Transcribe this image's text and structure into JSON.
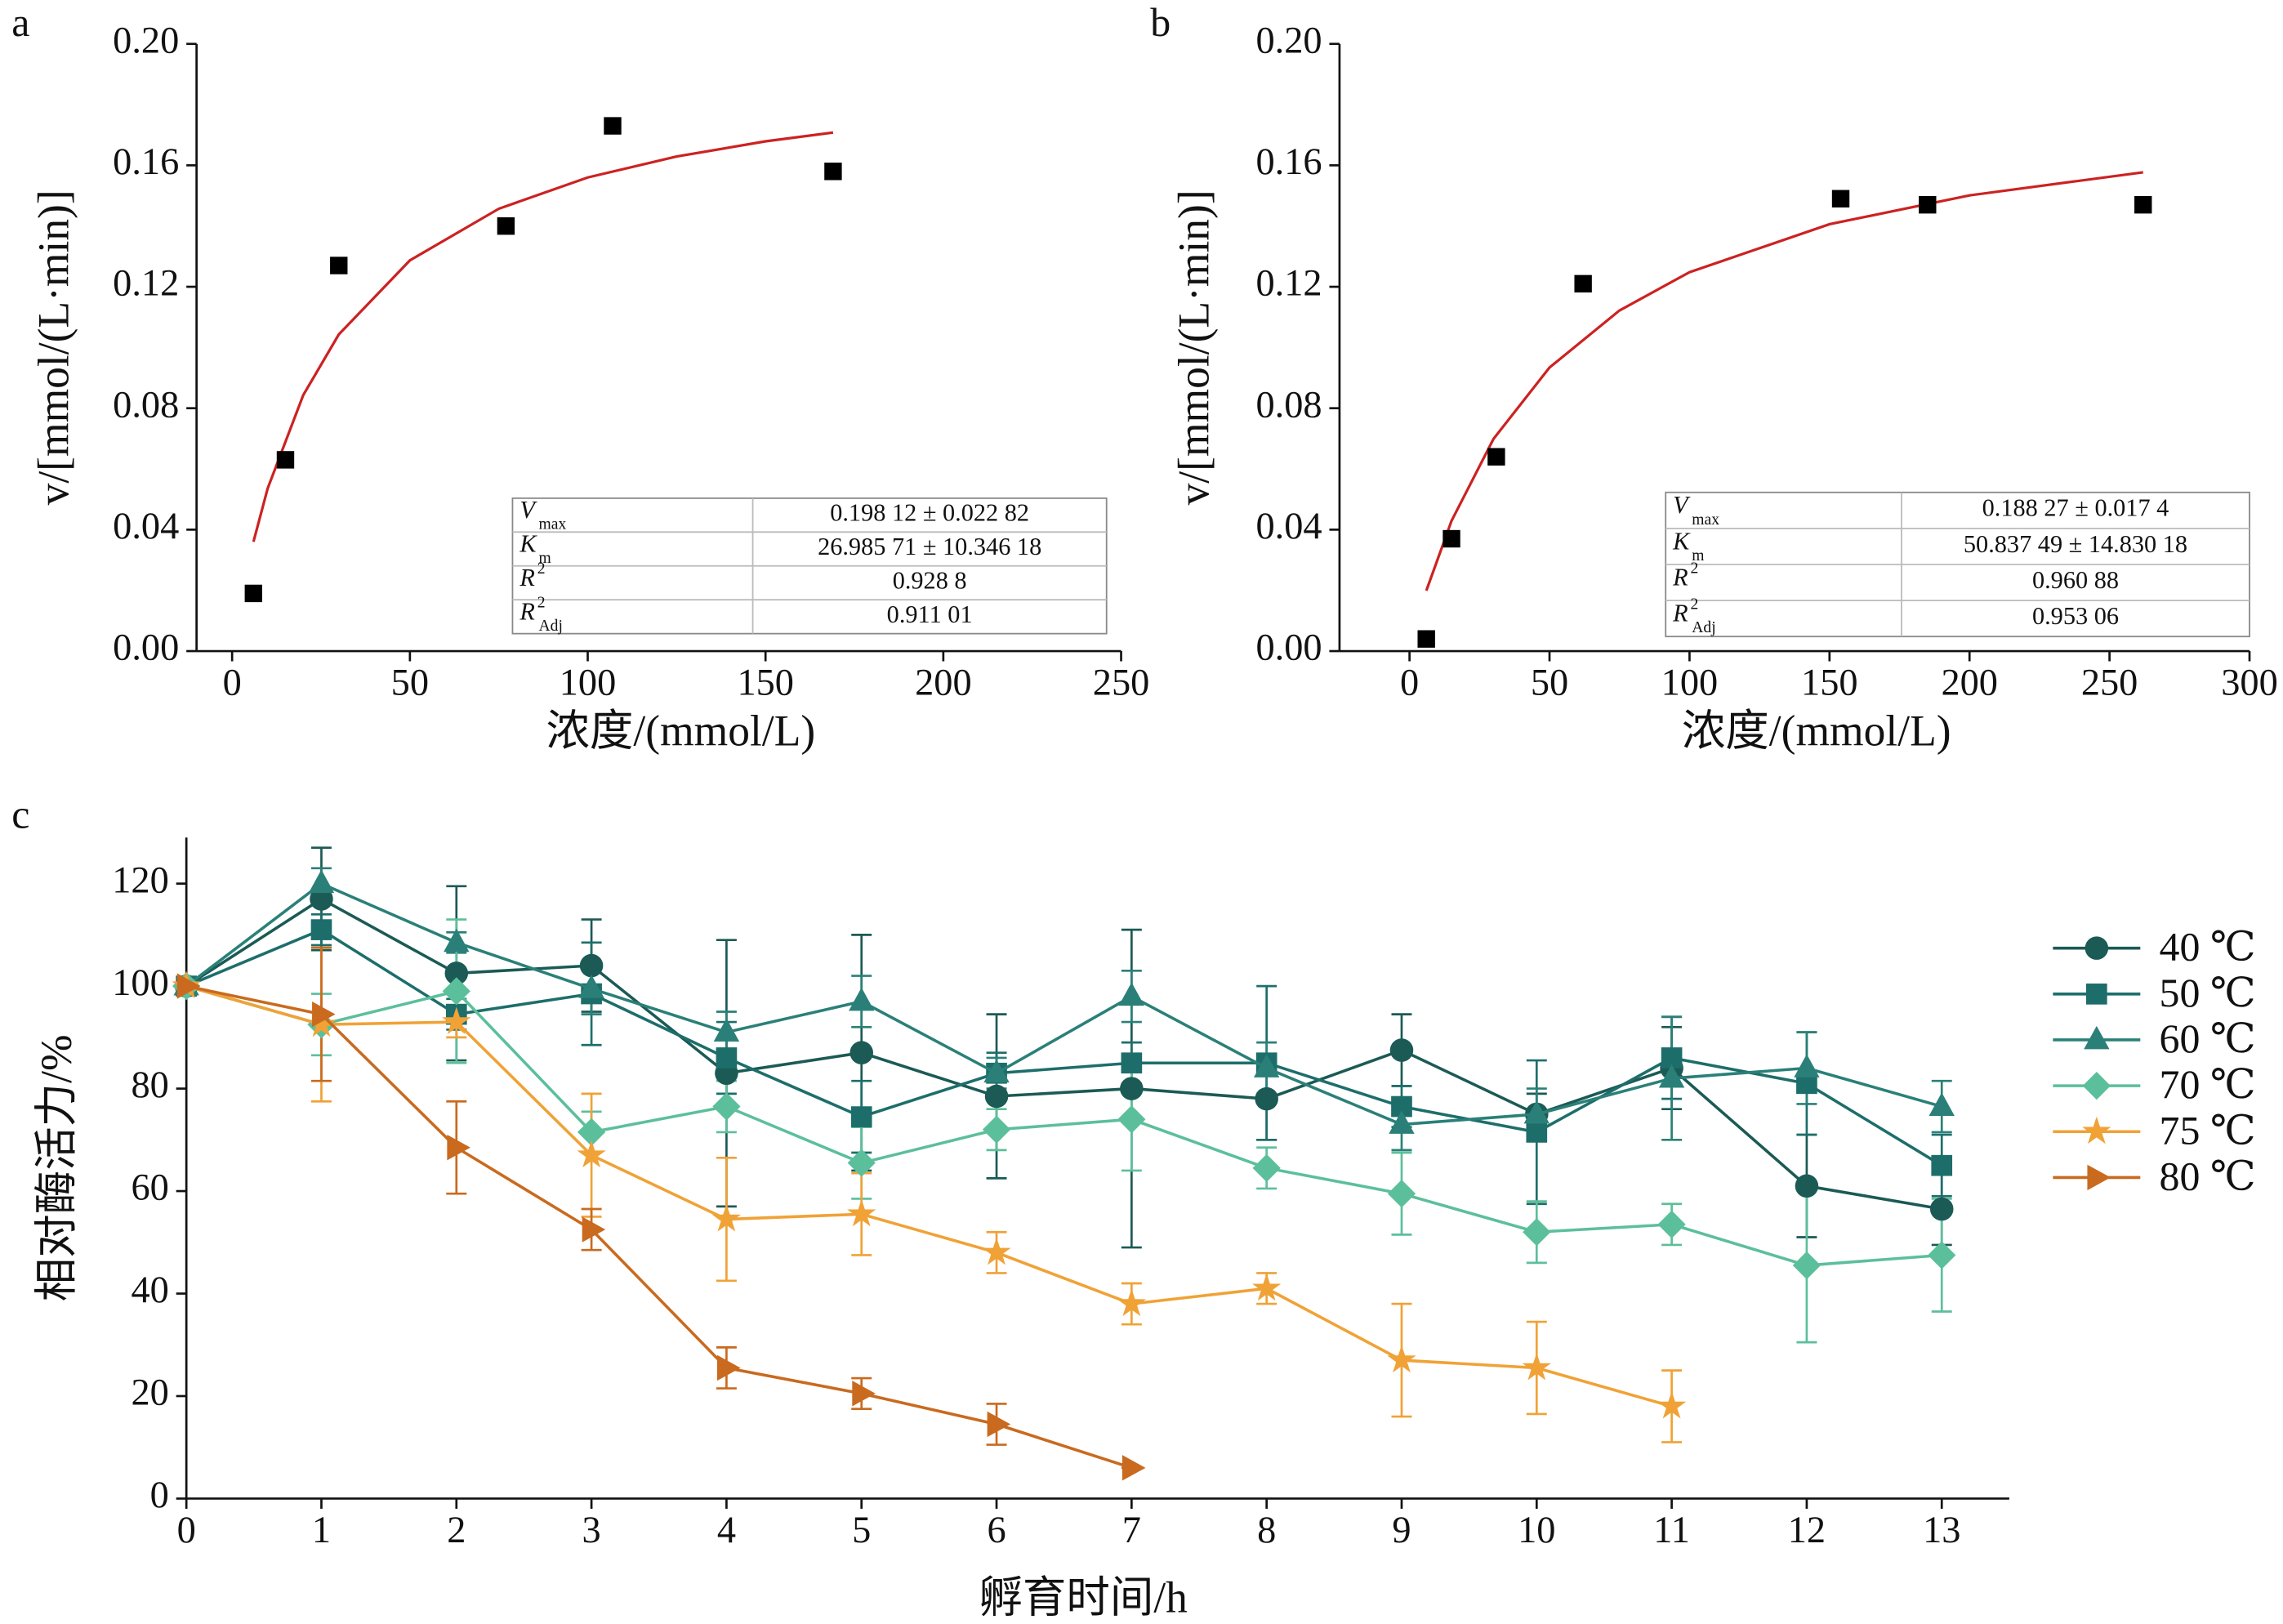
{
  "chart_data": [
    {
      "type": "scatter",
      "label": "a",
      "xlabel": "浓度/(mmol/L)",
      "ylabel": "v/[mmol/(L·min)]",
      "xlim": [
        -10,
        250
      ],
      "ylim": [
        0,
        0.2
      ],
      "xticks": [
        0,
        50,
        100,
        150,
        200,
        250
      ],
      "yticks": [
        {
          "value": 0,
          "label": "0.00"
        },
        0.04,
        0.08,
        0.12,
        0.16,
        {
          "value": 0.2,
          "label": "0.20"
        }
      ],
      "points": {
        "color": "#000000",
        "x": [
          6,
          15,
          30,
          77,
          107,
          169
        ],
        "values": [
          0.019,
          0.063,
          0.127,
          0.14,
          0.173,
          0.158
        ]
      },
      "fit": {
        "color": "#cc2222",
        "x": [
          6,
          10,
          20,
          30,
          50,
          75,
          100,
          125,
          150,
          169
        ],
        "values": [
          0.036,
          0.0536,
          0.0843,
          0.1043,
          0.1287,
          0.1457,
          0.156,
          0.1629,
          0.1679,
          0.1708
        ]
      },
      "table": [
        {
          "symbol": "V",
          "sub": "max",
          "value": "0.198 12 ± 0.022 82"
        },
        {
          "symbol": "K",
          "sub": "m",
          "value": "26.985 71 ± 10.346 18"
        },
        {
          "symbol": "R",
          "sup": "2",
          "value": "0.928 8"
        },
        {
          "symbol": "R",
          "sup": "2",
          "sub": "Adj",
          "value": "0.911 01"
        }
      ]
    },
    {
      "type": "scatter",
      "label": "b",
      "xlabel": "浓度/(mmol/L)",
      "ylabel": "v/[mmol/(L·min)]",
      "xlim": [
        -25,
        300
      ],
      "ylim": [
        0,
        0.2
      ],
      "xticks": [
        0,
        50,
        100,
        150,
        200,
        250,
        300
      ],
      "yticks": [
        {
          "value": 0,
          "label": "0.00"
        },
        0.04,
        0.08,
        0.12,
        0.16,
        {
          "value": 0.2,
          "label": "0.20"
        }
      ],
      "points": {
        "color": "#000000",
        "x": [
          6,
          15,
          31,
          62,
          154,
          185,
          262
        ],
        "values": [
          0.004,
          0.037,
          0.064,
          0.121,
          0.149,
          0.147,
          0.147
        ]
      },
      "fit": {
        "color": "#cc2222",
        "x": [
          6,
          15,
          30,
          50,
          75,
          100,
          150,
          200,
          262
        ],
        "values": [
          0.0199,
          0.0429,
          0.0699,
          0.0934,
          0.1122,
          0.1248,
          0.1406,
          0.1501,
          0.1577
        ]
      },
      "table": [
        {
          "symbol": "V",
          "sub": "max",
          "value": "0.188 27 ± 0.017 4"
        },
        {
          "symbol": "K",
          "sub": "m",
          "value": "50.837 49 ± 14.830 18"
        },
        {
          "symbol": "R",
          "sup": "2",
          "value": "0.960 88"
        },
        {
          "symbol": "R",
          "sup": "2",
          "sub": "Adj",
          "value": "0.953 06"
        }
      ]
    },
    {
      "type": "line",
      "label": "c",
      "xlabel": "孵育时间/h",
      "ylabel": "相对酶活力/%",
      "xlim": [
        0,
        13.5
      ],
      "ylim": [
        0,
        129
      ],
      "xticks": [
        0,
        1,
        2,
        3,
        4,
        5,
        6,
        7,
        8,
        9,
        10,
        11,
        12,
        13
      ],
      "yticks": [
        0,
        20,
        40,
        60,
        80,
        100,
        120
      ],
      "x": [
        0,
        1,
        2,
        3,
        4,
        5,
        6,
        7,
        8,
        9,
        10,
        11,
        12,
        13
      ],
      "series": [
        {
          "name": "40 ℃",
          "color": "#1b5a55",
          "marker": "circle",
          "values": [
            100,
            117,
            102.5,
            104,
            83,
            87,
            78.5,
            80,
            78,
            87.5,
            75,
            84,
            61,
            56.5
          ],
          "errors": [
            0,
            10,
            17,
            9,
            26,
            23,
            16,
            31,
            8,
            7,
            4,
            8,
            10,
            7
          ]
        },
        {
          "name": "50 ℃",
          "color": "#1d6e6b",
          "marker": "square",
          "values": [
            100,
            111,
            94.5,
            98.5,
            86,
            74.5,
            83,
            85,
            85,
            76.5,
            71.5,
            86,
            81,
            65
          ],
          "errors": [
            0,
            3,
            3,
            10,
            7,
            7,
            4,
            4,
            15,
            4,
            14,
            8,
            10,
            6
          ]
        },
        {
          "name": "60 ℃",
          "color": "#2a8078",
          "marker": "triangle",
          "values": [
            100,
            120,
            108.5,
            99.5,
            91,
            97,
            83,
            98,
            84,
            73,
            75,
            82,
            84,
            76.5
          ],
          "errors": [
            0,
            3,
            2,
            5,
            4,
            5,
            3,
            5,
            5,
            5,
            5,
            12,
            7,
            5
          ]
        },
        {
          "name": "70 ℃",
          "color": "#5cbf9b",
          "marker": "diamond",
          "values": [
            100,
            92.5,
            99,
            71.5,
            76.5,
            65.5,
            72,
            74,
            64.5,
            59.5,
            52,
            53.5,
            45.5,
            47.5
          ],
          "errors": [
            0,
            6,
            14,
            4,
            5,
            7,
            4,
            10,
            4,
            8,
            6,
            4,
            15,
            11
          ]
        },
        {
          "name": "75 ℃",
          "color": "#f0a236",
          "marker": "star",
          "values": [
            100,
            92.5,
            93,
            67,
            54.5,
            55.5,
            48,
            38,
            41,
            27,
            25.5,
            18,
            null,
            null
          ],
          "errors": [
            0,
            15,
            3,
            12,
            12,
            8,
            4,
            4,
            3,
            11,
            9,
            7,
            null,
            null
          ]
        },
        {
          "name": "80 ℃",
          "color": "#c96a1f",
          "marker": "tri-right",
          "values": [
            100,
            94.5,
            68.5,
            52.5,
            25.5,
            20.5,
            14.5,
            6,
            null,
            null,
            null,
            null,
            null,
            null
          ],
          "errors": [
            0,
            13,
            9,
            4,
            4,
            3,
            4,
            0,
            null,
            null,
            null,
            null,
            null,
            null
          ]
        }
      ]
    }
  ]
}
